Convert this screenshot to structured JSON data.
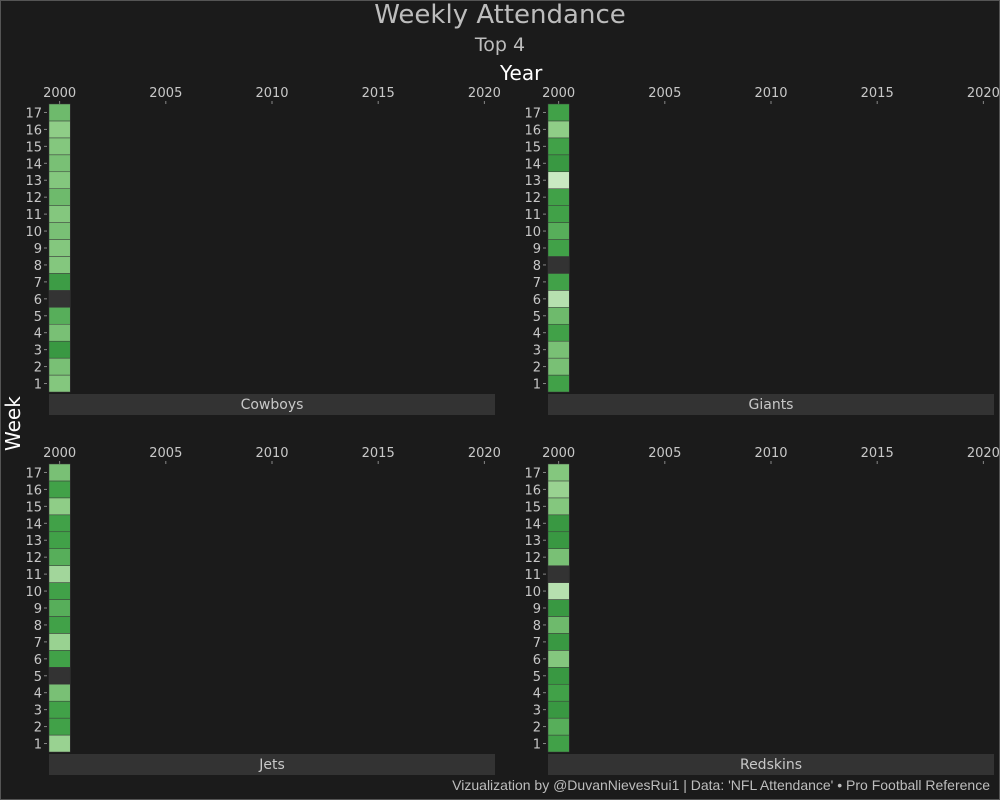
{
  "title": "Weekly Attendance",
  "subtitle": "Top 4",
  "caption": "Vizualization by @DuvanNievesRui1 | Data: 'NFL Attendance' • Pro Football Reference",
  "chart_data": {
    "type": "heatmap",
    "title": "Weekly Attendance",
    "subtitle": "Top 4",
    "xlabel": "Year",
    "ylabel": "Week",
    "x_ticks": [
      2000,
      2005,
      2010,
      2015,
      2020
    ],
    "xlim": [
      1999.5,
      2020.5
    ],
    "y_ticks": [
      1,
      2,
      3,
      4,
      5,
      6,
      7,
      8,
      9,
      10,
      11,
      12,
      13,
      14,
      15,
      16,
      17
    ],
    "value_note": "relative attendance level 0-1 (light=low, dark=high); null = bye week",
    "colors": {
      "background": "#1b1b1b",
      "strip": "#333333",
      "na": "#333333",
      "low": "#dcf2d6",
      "high": "#2d8a3a"
    },
    "panels": [
      {
        "team": "Cowboys",
        "year": 2000,
        "values": [
          0.45,
          0.5,
          0.85,
          0.5,
          0.65,
          null,
          0.8,
          0.45,
          0.45,
          0.5,
          0.45,
          0.55,
          0.45,
          0.5,
          0.45,
          0.4,
          0.55
        ]
      },
      {
        "team": "Giants",
        "year": 2000,
        "values": [
          0.75,
          0.5,
          0.5,
          0.75,
          0.55,
          0.2,
          0.75,
          null,
          0.75,
          0.65,
          0.75,
          0.75,
          0.1,
          0.85,
          0.75,
          0.4,
          0.75
        ]
      },
      {
        "team": "Jets",
        "year": 2000,
        "values": [
          0.35,
          0.75,
          0.75,
          0.5,
          null,
          0.75,
          0.35,
          0.75,
          0.65,
          0.75,
          0.3,
          0.65,
          0.75,
          0.75,
          0.4,
          0.75,
          0.5
        ]
      },
      {
        "team": "Redskins",
        "year": 2000,
        "values": [
          0.75,
          0.65,
          0.85,
          0.75,
          0.85,
          0.45,
          0.85,
          0.55,
          0.85,
          0.2,
          null,
          0.5,
          0.85,
          0.85,
          0.45,
          0.35,
          0.45
        ]
      }
    ]
  }
}
